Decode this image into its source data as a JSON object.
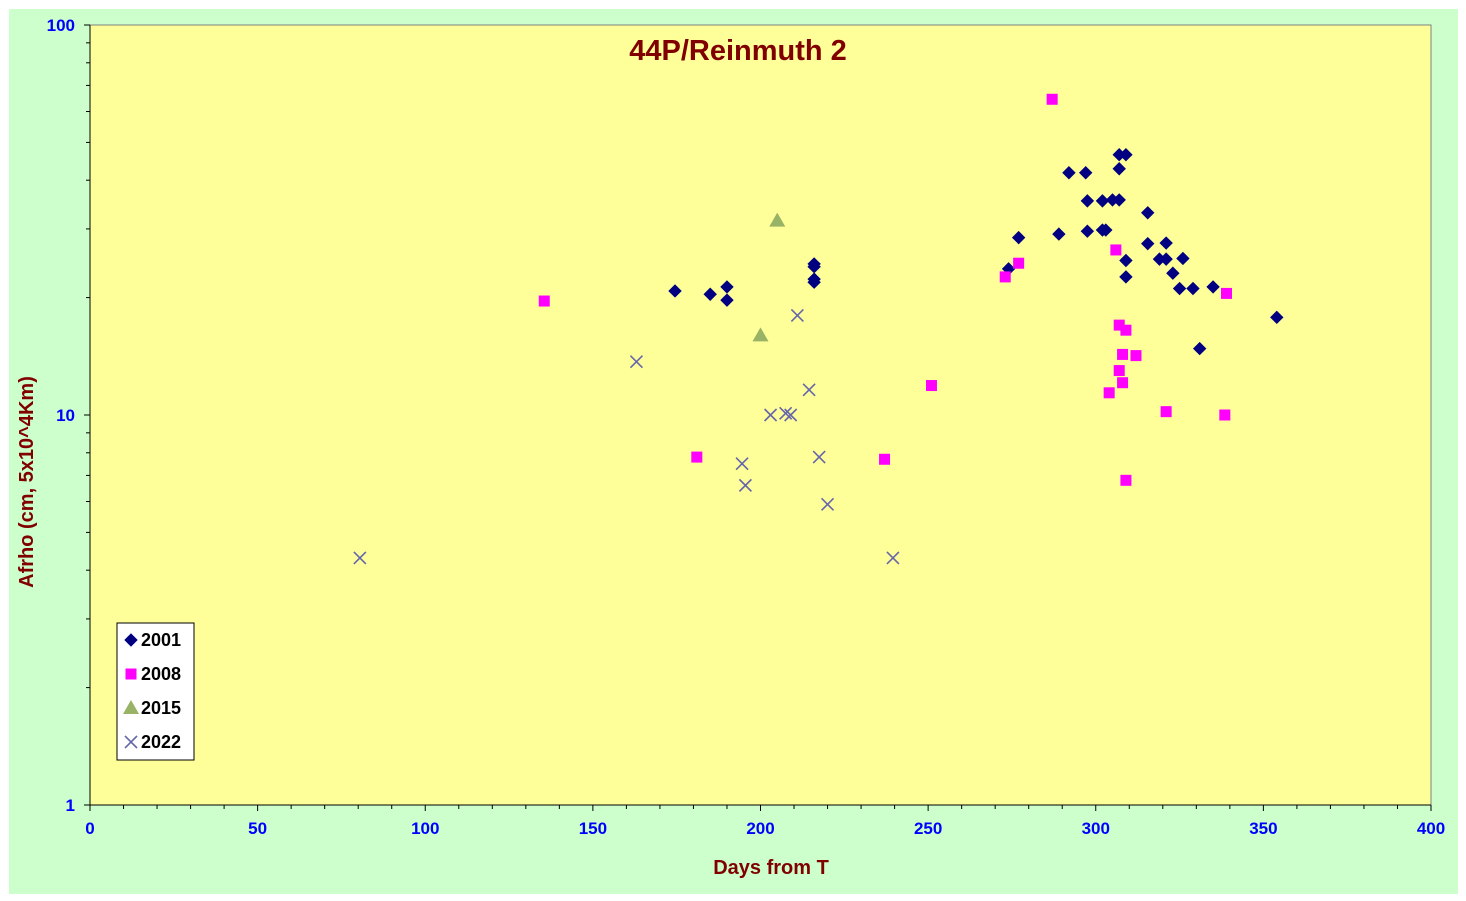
{
  "chart_data": {
    "type": "scatter",
    "title": "44P/Reinmuth 2",
    "xlabel": "Days from T",
    "ylabel": "Afrho (cm, 5x10^4Km)",
    "xlim": [
      0,
      400
    ],
    "ylim": [
      1,
      100
    ],
    "yscale": "log",
    "x_ticks": [
      "0",
      "50",
      "100",
      "150",
      "200",
      "250",
      "300",
      "350",
      "400"
    ],
    "y_ticks": [
      "1",
      "10",
      "100"
    ],
    "grid": false,
    "legend_position": "bottom-left",
    "colors": {
      "outer_background": "#ccffcc",
      "plot_background": "#ffff99",
      "title": "#800000",
      "tick_labels": "#0000ff"
    },
    "series": [
      {
        "name": "2001",
        "marker": "diamond",
        "color": "#000080",
        "points": [
          [
            174.5,
            20.8
          ],
          [
            185,
            20.4
          ],
          [
            190,
            21.3
          ],
          [
            190,
            19.7
          ],
          [
            216,
            24.4
          ],
          [
            216,
            24.0
          ],
          [
            216,
            22.3
          ],
          [
            216,
            21.9
          ],
          [
            274,
            23.7
          ],
          [
            277,
            28.5
          ],
          [
            289,
            29.1
          ],
          [
            292,
            41.8
          ],
          [
            297,
            41.8
          ],
          [
            297.5,
            35.4
          ],
          [
            297.5,
            29.6
          ],
          [
            302,
            35.4
          ],
          [
            302,
            29.8
          ],
          [
            303,
            29.8
          ],
          [
            305,
            35.6
          ],
          [
            307,
            35.6
          ],
          [
            307,
            46.5
          ],
          [
            307,
            42.8
          ],
          [
            309,
            46.5
          ],
          [
            309,
            24.9
          ],
          [
            309,
            22.6
          ],
          [
            315.5,
            33.0
          ],
          [
            315.5,
            27.5
          ],
          [
            319,
            25.1
          ],
          [
            321,
            27.6
          ],
          [
            321,
            25.1
          ],
          [
            323,
            23.1
          ],
          [
            325,
            21.1
          ],
          [
            326,
            25.2
          ],
          [
            329,
            21.1
          ],
          [
            335,
            21.3
          ],
          [
            331,
            14.8
          ],
          [
            354,
            17.8
          ]
        ]
      },
      {
        "name": "2008",
        "marker": "square",
        "color": "#ff00ff",
        "points": [
          [
            135.5,
            19.6
          ],
          [
            181,
            7.8
          ],
          [
            237,
            7.7
          ],
          [
            251,
            11.9
          ],
          [
            273,
            22.6
          ],
          [
            277,
            24.5
          ],
          [
            287,
            64.5
          ],
          [
            304,
            11.4
          ],
          [
            306,
            26.5
          ],
          [
            307,
            17.0
          ],
          [
            307,
            13.0
          ],
          [
            308,
            14.3
          ],
          [
            308,
            12.1
          ],
          [
            309,
            16.5
          ],
          [
            309,
            6.8
          ],
          [
            312,
            14.2
          ],
          [
            321,
            10.2
          ],
          [
            338.5,
            10.0
          ],
          [
            339,
            20.5
          ]
        ]
      },
      {
        "name": "2015",
        "marker": "triangle",
        "color": "#99b366",
        "points": [
          [
            205,
            31.5
          ],
          [
            200,
            16.0
          ]
        ]
      },
      {
        "name": "2022",
        "marker": "cross",
        "color": "#6666aa",
        "points": [
          [
            80.5,
            4.3
          ],
          [
            163,
            13.7
          ],
          [
            194.5,
            7.5
          ],
          [
            195.5,
            6.6
          ],
          [
            203,
            10.0
          ],
          [
            207.5,
            10.1
          ],
          [
            209,
            10.0
          ],
          [
            211,
            18.0
          ],
          [
            214.5,
            11.6
          ],
          [
            217.5,
            7.8
          ],
          [
            220,
            5.9
          ],
          [
            239.5,
            4.3
          ]
        ]
      }
    ]
  }
}
